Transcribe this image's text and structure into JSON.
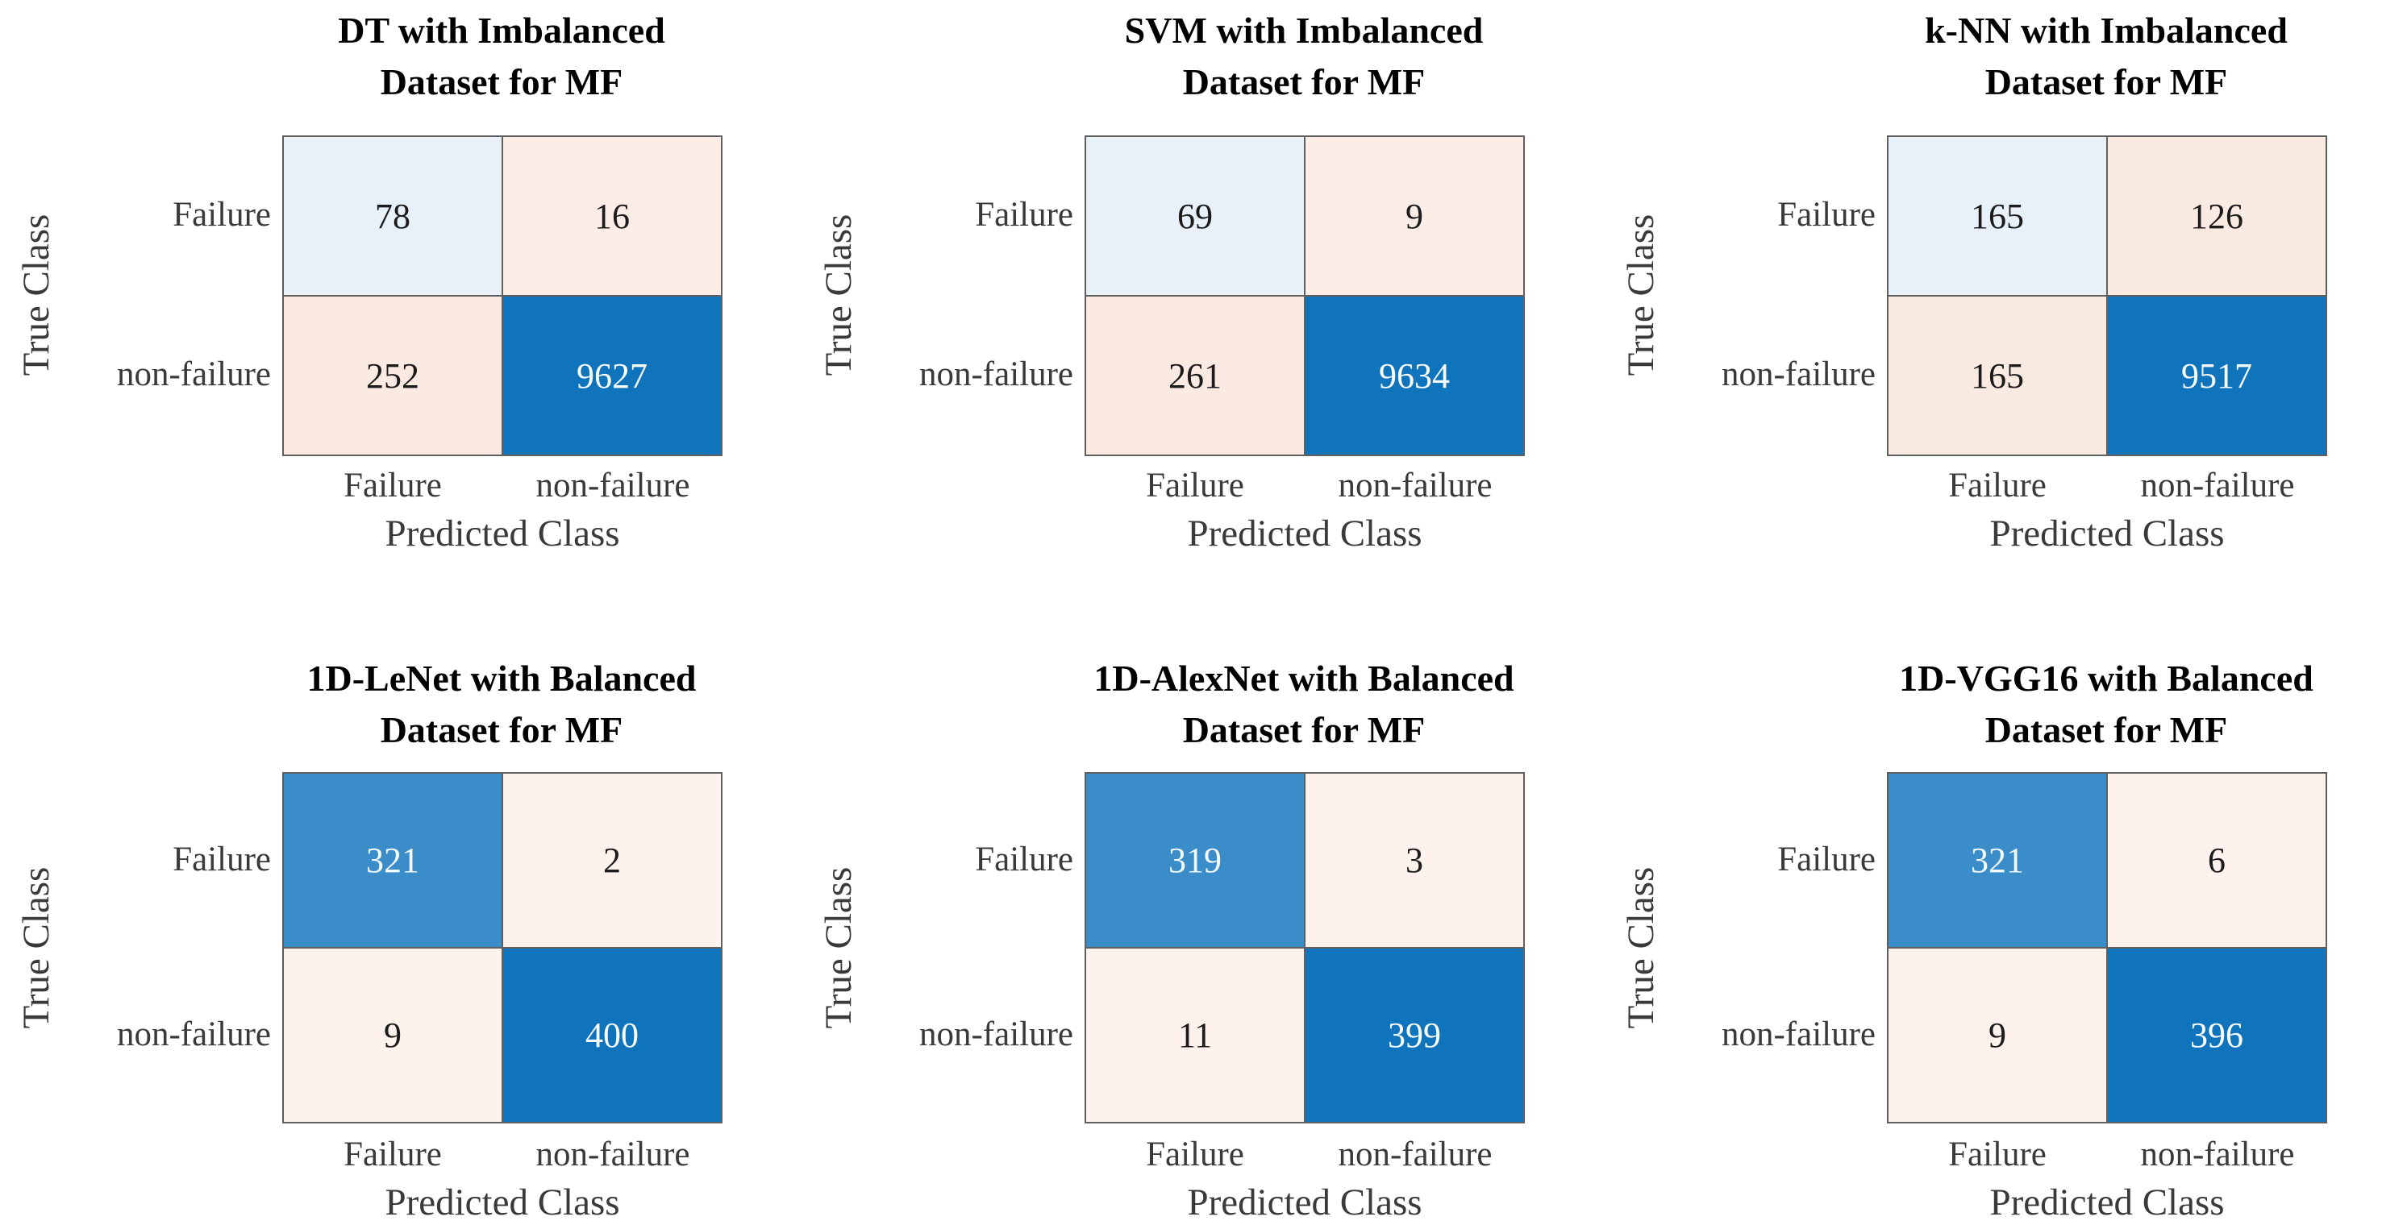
{
  "axis": {
    "x_label": "Predicted Class",
    "y_label": "True Class",
    "row_labels": [
      "Failure",
      "non-failure"
    ],
    "col_labels": [
      "Failure",
      "non-failure"
    ]
  },
  "colors": {
    "diagonal_high_blue": "#0f74bb",
    "diagonal_mid_blue": "#3a8dc8",
    "diagonal_low_blue": "#e8f1f8",
    "offdiagonal_cream": "#fbede6",
    "grid_line": "#5f5f5f",
    "label_text": "#3a3a3a",
    "title_text": "#000000"
  },
  "panels": [
    {
      "title_line1": "DT with Imbalanced",
      "title_line2": "Dataset for MF",
      "cells": [
        {
          "value": "78",
          "bg": "#e8f1f8",
          "fg": "#1b1b1b"
        },
        {
          "value": "16",
          "bg": "#fbede6",
          "fg": "#1b1b1b"
        },
        {
          "value": "252",
          "bg": "#faeae1",
          "fg": "#1b1b1b"
        },
        {
          "value": "9627",
          "bg": "#0f74bb",
          "fg": "#fafdfe"
        }
      ]
    },
    {
      "title_line1": "SVM with Imbalanced",
      "title_line2": "Dataset for MF",
      "cells": [
        {
          "value": "69",
          "bg": "#e8f1f8",
          "fg": "#1b1b1b"
        },
        {
          "value": "9",
          "bg": "#fbede6",
          "fg": "#1b1b1b"
        },
        {
          "value": "261",
          "bg": "#faeae1",
          "fg": "#1b1b1b"
        },
        {
          "value": "9634",
          "bg": "#0f74bb",
          "fg": "#fafdfe"
        }
      ]
    },
    {
      "title_line1": "k-NN with Imbalanced",
      "title_line2": "Dataset for MF",
      "cells": [
        {
          "value": "165",
          "bg": "#e8f1f8",
          "fg": "#1b1b1b"
        },
        {
          "value": "126",
          "bg": "#faebe2",
          "fg": "#1b1b1b"
        },
        {
          "value": "165",
          "bg": "#faebe2",
          "fg": "#1b1b1b"
        },
        {
          "value": "9517",
          "bg": "#0f74bb",
          "fg": "#fafdfe"
        }
      ]
    },
    {
      "title_line1": "1D-LeNet with Balanced",
      "title_line2": "Dataset for MF",
      "cells": [
        {
          "value": "321",
          "bg": "#3a8dc8",
          "fg": "#f4f9fc"
        },
        {
          "value": "2",
          "bg": "#fdf2ec",
          "fg": "#1b1b1b"
        },
        {
          "value": "9",
          "bg": "#fdf2ec",
          "fg": "#1b1b1b"
        },
        {
          "value": "400",
          "bg": "#0f74bb",
          "fg": "#fafdfe"
        }
      ]
    },
    {
      "title_line1": "1D-AlexNet with Balanced",
      "title_line2": "Dataset for MF",
      "cells": [
        {
          "value": "319",
          "bg": "#3a8dc8",
          "fg": "#f4f9fc"
        },
        {
          "value": "3",
          "bg": "#fdf2ec",
          "fg": "#1b1b1b"
        },
        {
          "value": "11",
          "bg": "#fdf2ec",
          "fg": "#1b1b1b"
        },
        {
          "value": "399",
          "bg": "#0f74bb",
          "fg": "#fafdfe"
        }
      ]
    },
    {
      "title_line1": "1D-VGG16 with Balanced",
      "title_line2": "Dataset for MF",
      "cells": [
        {
          "value": "321",
          "bg": "#3a8dc8",
          "fg": "#f4f9fc"
        },
        {
          "value": "6",
          "bg": "#fdf2ec",
          "fg": "#1b1b1b"
        },
        {
          "value": "9",
          "bg": "#fdf2ec",
          "fg": "#1b1b1b"
        },
        {
          "value": "396",
          "bg": "#0f74bb",
          "fg": "#fafdfe"
        }
      ]
    }
  ],
  "chart_data": [
    {
      "type": "heatmap",
      "title": "DT with Imbalanced Dataset for MF",
      "xlabel": "Predicted Class",
      "ylabel": "True Class",
      "x_categories": [
        "Failure",
        "non-failure"
      ],
      "y_categories": [
        "Failure",
        "non-failure"
      ],
      "values": [
        [
          78,
          16
        ],
        [
          252,
          9627
        ]
      ]
    },
    {
      "type": "heatmap",
      "title": "SVM with Imbalanced Dataset for MF",
      "xlabel": "Predicted Class",
      "ylabel": "True Class",
      "x_categories": [
        "Failure",
        "non-failure"
      ],
      "y_categories": [
        "Failure",
        "non-failure"
      ],
      "values": [
        [
          69,
          9
        ],
        [
          261,
          9634
        ]
      ]
    },
    {
      "type": "heatmap",
      "title": "k-NN with Imbalanced Dataset for MF",
      "xlabel": "Predicted Class",
      "ylabel": "True Class",
      "x_categories": [
        "Failure",
        "non-failure"
      ],
      "y_categories": [
        "Failure",
        "non-failure"
      ],
      "values": [
        [
          165,
          126
        ],
        [
          165,
          9517
        ]
      ]
    },
    {
      "type": "heatmap",
      "title": "1D-LeNet with Balanced Dataset for MF",
      "xlabel": "Predicted Class",
      "ylabel": "True Class",
      "x_categories": [
        "Failure",
        "non-failure"
      ],
      "y_categories": [
        "Failure",
        "non-failure"
      ],
      "values": [
        [
          321,
          2
        ],
        [
          9,
          400
        ]
      ]
    },
    {
      "type": "heatmap",
      "title": "1D-AlexNet with Balanced Dataset for MF",
      "xlabel": "Predicted Class",
      "ylabel": "True Class",
      "x_categories": [
        "Failure",
        "non-failure"
      ],
      "y_categories": [
        "Failure",
        "non-failure"
      ],
      "values": [
        [
          319,
          3
        ],
        [
          11,
          399
        ]
      ]
    },
    {
      "type": "heatmap",
      "title": "1D-VGG16 with Balanced Dataset for MF",
      "xlabel": "Predicted Class",
      "ylabel": "True Class",
      "x_categories": [
        "Failure",
        "non-failure"
      ],
      "y_categories": [
        "Failure",
        "non-failure"
      ],
      "values": [
        [
          321,
          6
        ],
        [
          9,
          396
        ]
      ]
    }
  ]
}
